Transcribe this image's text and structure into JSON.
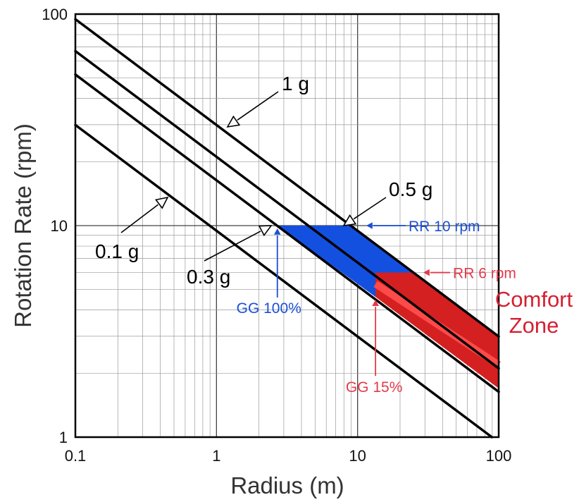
{
  "chart_data": {
    "type": "line",
    "xlabel": "Radius (m)",
    "ylabel": "Rotation Rate (rpm)",
    "x_scale": "log",
    "y_scale": "log",
    "xlim": [
      0.1,
      100
    ],
    "ylim": [
      1,
      100
    ],
    "x_ticks": [
      "0.1",
      "1",
      "10",
      "100"
    ],
    "y_ticks": [
      "1",
      "10",
      "100"
    ],
    "grid": true,
    "series": [
      {
        "name": "1 g",
        "accel_g": 1.0
      },
      {
        "name": "0.5 g",
        "accel_g": 0.5
      },
      {
        "name": "0.3 g",
        "accel_g": 0.3
      },
      {
        "name": "0.1 g",
        "accel_g": 0.1
      }
    ],
    "regions": [
      {
        "color": "#1450e0",
        "points": [
          [
            2.7,
            10
          ],
          [
            8.95,
            10
          ],
          [
            24.9,
            6
          ],
          [
            13.4,
            4.6
          ]
        ]
      },
      {
        "color": "#d42020",
        "points": [
          [
            13.4,
            6
          ],
          [
            24.9,
            6
          ],
          [
            100,
            3.0
          ],
          [
            100,
            1.7
          ],
          [
            13.4,
            4.6
          ]
        ]
      }
    ],
    "comfort_centerline": [
      [
        13.4,
        5.3
      ],
      [
        100,
        2.2
      ]
    ],
    "annotations": [
      {
        "id": "rr10",
        "text": "RR 10 rpm",
        "color": "#1a4fd6",
        "x": 8.95,
        "y": 10
      },
      {
        "id": "rr6",
        "text": "RR 6 rpm",
        "color": "#e33b4a",
        "x": 24.9,
        "y": 6
      },
      {
        "id": "gg100",
        "text": "GG 100%",
        "color": "#1a4fd6",
        "x": 2.7,
        "y": 10
      },
      {
        "id": "gg15",
        "text": "GG 15%",
        "color": "#e33b4a",
        "x": 13.4,
        "y": 4.6
      }
    ],
    "zone_label": [
      "Comfort",
      "Zone"
    ],
    "zone_color": "#d42032"
  }
}
